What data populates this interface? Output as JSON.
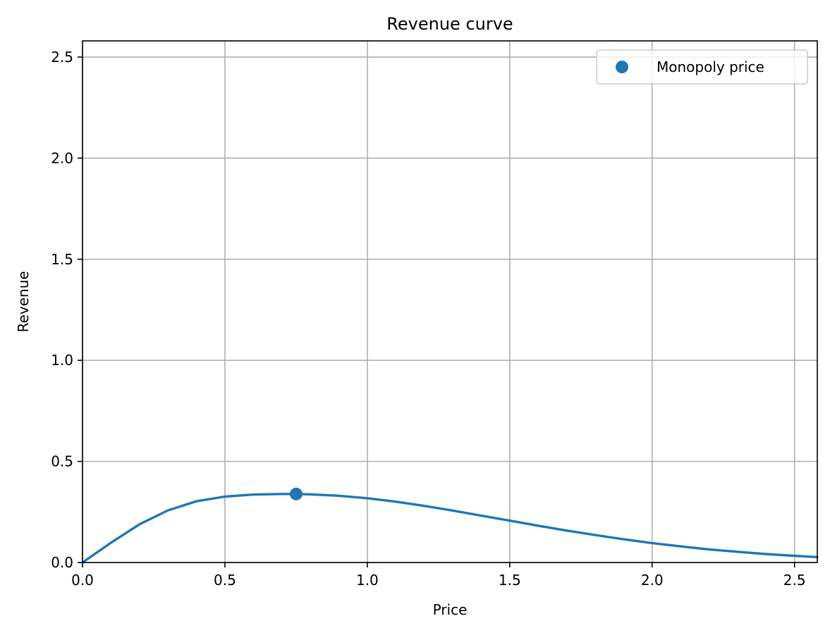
{
  "chart_data": {
    "type": "line",
    "title": "Revenue curve",
    "xlabel": "Price",
    "ylabel": "Revenue",
    "xlim": [
      0.0,
      2.58
    ],
    "ylim": [
      0.0,
      2.58
    ],
    "xticks": [
      0.0,
      0.5,
      1.0,
      1.5,
      2.0,
      2.5
    ],
    "xtick_labels": [
      "0.0",
      "0.5",
      "1.0",
      "1.5",
      "2.0",
      "2.5"
    ],
    "yticks": [
      0.0,
      0.5,
      1.0,
      1.5,
      2.0,
      2.5
    ],
    "ytick_labels": [
      "0.0",
      "0.5",
      "1.0",
      "1.5",
      "2.0",
      "2.5"
    ],
    "grid": true,
    "legend_position": "top-right",
    "series": [
      {
        "kind": "line",
        "color": "#1f77b4",
        "x": [
          0.0,
          0.1,
          0.2,
          0.3,
          0.4,
          0.5,
          0.6,
          0.7,
          0.75,
          0.8,
          0.9,
          1.0,
          1.1,
          1.2,
          1.3,
          1.4,
          1.5,
          1.6,
          1.7,
          1.8,
          1.9,
          2.0,
          2.1,
          2.2,
          2.3,
          2.4,
          2.5,
          2.58
        ],
        "y": [
          0.0,
          0.098,
          0.189,
          0.258,
          0.303,
          0.326,
          0.336,
          0.339,
          0.339,
          0.337,
          0.33,
          0.318,
          0.301,
          0.28,
          0.257,
          0.232,
          0.207,
          0.182,
          0.158,
          0.136,
          0.115,
          0.096,
          0.08,
          0.065,
          0.053,
          0.042,
          0.033,
          0.027
        ]
      },
      {
        "kind": "scatter",
        "name": "Monopoly price",
        "color": "#1f77b4",
        "x": [
          0.75
        ],
        "y": [
          0.339
        ]
      }
    ]
  }
}
